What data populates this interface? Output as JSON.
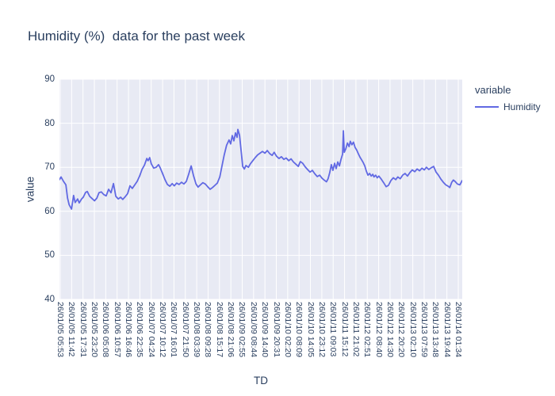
{
  "chart_data": {
    "type": "line",
    "title": "Humidity (%)  data for the past week",
    "xlabel": "TD",
    "ylabel": "value",
    "legend_title": "variable",
    "legend_position": "right",
    "grid": true,
    "ylim": [
      40,
      90
    ],
    "y_ticks": [
      40,
      50,
      60,
      70,
      80,
      90
    ],
    "x_ticks": [
      "26/01/05 05:53",
      "26/01/05 11:42",
      "26/01/05 17:31",
      "26/01/05 23:20",
      "26/01/06 05:08",
      "26/01/06 10:57",
      "26/01/06 16:46",
      "26/01/06 22:35",
      "26/01/07 04:24",
      "26/01/07 10:12",
      "26/01/07 16:01",
      "26/01/07 21:50",
      "26/01/08 03:39",
      "26/01/08 09:28",
      "26/01/08 15:17",
      "26/01/08 21:06",
      "26/01/09 02:55",
      "26/01/09 08:44",
      "26/01/09 14:40",
      "26/01/09 20:31",
      "26/01/10 02:20",
      "26/01/10 08:09",
      "26/01/10 14:05",
      "26/01/10 23:12",
      "26/01/11 09:03",
      "26/01/11 15:12",
      "26/01/11 21:02",
      "26/01/12 02:51",
      "26/01/12 08:40",
      "26/01/12 14:30",
      "26/01/12 20:20",
      "26/01/13 02:10",
      "26/01/13 07:59",
      "26/01/13 13:48",
      "26/01/13 19:44",
      "26/01/14 01:34"
    ],
    "colors": {
      "line": "#6169e3",
      "plot_bg": "#e8eaf4",
      "grid": "#ffffff",
      "text": "#2a3f5f"
    },
    "series": [
      {
        "name": "Humidity",
        "points": [
          [
            0.0,
            67.2
          ],
          [
            0.004,
            67.8
          ],
          [
            0.01,
            66.8
          ],
          [
            0.016,
            66.0
          ],
          [
            0.02,
            63.0
          ],
          [
            0.024,
            61.5
          ],
          [
            0.03,
            60.5
          ],
          [
            0.035,
            63.6
          ],
          [
            0.039,
            62.0
          ],
          [
            0.045,
            62.8
          ],
          [
            0.049,
            61.9
          ],
          [
            0.055,
            62.8
          ],
          [
            0.059,
            63.2
          ],
          [
            0.065,
            64.3
          ],
          [
            0.069,
            64.5
          ],
          [
            0.075,
            63.4
          ],
          [
            0.081,
            62.9
          ],
          [
            0.087,
            62.4
          ],
          [
            0.093,
            63.0
          ],
          [
            0.098,
            64.2
          ],
          [
            0.104,
            64.4
          ],
          [
            0.11,
            63.8
          ],
          [
            0.116,
            63.5
          ],
          [
            0.122,
            65.0
          ],
          [
            0.128,
            64.2
          ],
          [
            0.134,
            66.3
          ],
          [
            0.14,
            63.4
          ],
          [
            0.146,
            62.8
          ],
          [
            0.152,
            63.2
          ],
          [
            0.157,
            62.7
          ],
          [
            0.163,
            63.3
          ],
          [
            0.169,
            64.0
          ],
          [
            0.175,
            65.8
          ],
          [
            0.181,
            65.2
          ],
          [
            0.187,
            66.0
          ],
          [
            0.193,
            66.8
          ],
          [
            0.199,
            68.0
          ],
          [
            0.205,
            69.5
          ],
          [
            0.211,
            70.5
          ],
          [
            0.217,
            72.0
          ],
          [
            0.22,
            71.5
          ],
          [
            0.224,
            72.2
          ],
          [
            0.228,
            70.8
          ],
          [
            0.234,
            69.8
          ],
          [
            0.24,
            70.0
          ],
          [
            0.246,
            70.6
          ],
          [
            0.25,
            69.9
          ],
          [
            0.256,
            68.6
          ],
          [
            0.262,
            67.2
          ],
          [
            0.268,
            66.1
          ],
          [
            0.274,
            65.7
          ],
          [
            0.28,
            66.3
          ],
          [
            0.285,
            65.8
          ],
          [
            0.291,
            66.4
          ],
          [
            0.297,
            66.1
          ],
          [
            0.303,
            66.6
          ],
          [
            0.309,
            66.2
          ],
          [
            0.315,
            66.8
          ],
          [
            0.321,
            68.5
          ],
          [
            0.327,
            70.3
          ],
          [
            0.333,
            68.0
          ],
          [
            0.339,
            66.2
          ],
          [
            0.344,
            65.5
          ],
          [
            0.35,
            66.0
          ],
          [
            0.356,
            66.5
          ],
          [
            0.362,
            66.2
          ],
          [
            0.368,
            65.6
          ],
          [
            0.374,
            65.0
          ],
          [
            0.38,
            65.4
          ],
          [
            0.386,
            65.9
          ],
          [
            0.392,
            66.4
          ],
          [
            0.398,
            67.8
          ],
          [
            0.404,
            70.5
          ],
          [
            0.409,
            72.8
          ],
          [
            0.415,
            75.0
          ],
          [
            0.421,
            76.2
          ],
          [
            0.425,
            75.3
          ],
          [
            0.429,
            77.2
          ],
          [
            0.433,
            76.0
          ],
          [
            0.437,
            77.8
          ],
          [
            0.441,
            76.8
          ],
          [
            0.443,
            78.6
          ],
          [
            0.447,
            77.3
          ],
          [
            0.451,
            73.8
          ],
          [
            0.455,
            70.2
          ],
          [
            0.459,
            69.6
          ],
          [
            0.463,
            70.4
          ],
          [
            0.469,
            70.0
          ],
          [
            0.474,
            70.8
          ],
          [
            0.48,
            71.5
          ],
          [
            0.486,
            72.2
          ],
          [
            0.492,
            72.8
          ],
          [
            0.498,
            73.2
          ],
          [
            0.504,
            73.6
          ],
          [
            0.51,
            73.2
          ],
          [
            0.516,
            73.8
          ],
          [
            0.522,
            73.1
          ],
          [
            0.528,
            72.7
          ],
          [
            0.533,
            73.4
          ],
          [
            0.539,
            72.5
          ],
          [
            0.545,
            72.0
          ],
          [
            0.551,
            72.4
          ],
          [
            0.557,
            71.8
          ],
          [
            0.563,
            72.1
          ],
          [
            0.569,
            71.5
          ],
          [
            0.575,
            71.9
          ],
          [
            0.581,
            71.2
          ],
          [
            0.587,
            70.7
          ],
          [
            0.593,
            70.2
          ],
          [
            0.598,
            71.3
          ],
          [
            0.604,
            70.9
          ],
          [
            0.61,
            70.1
          ],
          [
            0.616,
            69.5
          ],
          [
            0.622,
            68.9
          ],
          [
            0.628,
            69.3
          ],
          [
            0.634,
            68.5
          ],
          [
            0.64,
            67.9
          ],
          [
            0.646,
            68.2
          ],
          [
            0.652,
            67.5
          ],
          [
            0.657,
            67.1
          ],
          [
            0.663,
            66.7
          ],
          [
            0.667,
            67.4
          ],
          [
            0.671,
            68.8
          ],
          [
            0.675,
            70.6
          ],
          [
            0.679,
            69.3
          ],
          [
            0.683,
            70.9
          ],
          [
            0.687,
            69.7
          ],
          [
            0.691,
            71.2
          ],
          [
            0.695,
            70.3
          ],
          [
            0.699,
            71.8
          ],
          [
            0.703,
            73.0
          ],
          [
            0.705,
            78.3
          ],
          [
            0.707,
            73.4
          ],
          [
            0.711,
            74.2
          ],
          [
            0.715,
            75.5
          ],
          [
            0.719,
            74.7
          ],
          [
            0.722,
            75.9
          ],
          [
            0.726,
            75.1
          ],
          [
            0.73,
            75.7
          ],
          [
            0.734,
            74.5
          ],
          [
            0.738,
            73.9
          ],
          [
            0.742,
            73.1
          ],
          [
            0.746,
            72.3
          ],
          [
            0.75,
            71.7
          ],
          [
            0.754,
            71.1
          ],
          [
            0.758,
            70.3
          ],
          [
            0.762,
            69.1
          ],
          [
            0.766,
            68.2
          ],
          [
            0.77,
            68.6
          ],
          [
            0.774,
            68.0
          ],
          [
            0.778,
            68.4
          ],
          [
            0.781,
            67.8
          ],
          [
            0.785,
            68.2
          ],
          [
            0.789,
            67.6
          ],
          [
            0.793,
            68.0
          ],
          [
            0.799,
            67.3
          ],
          [
            0.805,
            66.5
          ],
          [
            0.811,
            65.6
          ],
          [
            0.817,
            65.9
          ],
          [
            0.823,
            67.0
          ],
          [
            0.829,
            67.6
          ],
          [
            0.835,
            67.2
          ],
          [
            0.84,
            67.8
          ],
          [
            0.846,
            67.4
          ],
          [
            0.852,
            68.2
          ],
          [
            0.858,
            68.6
          ],
          [
            0.864,
            68.0
          ],
          [
            0.87,
            68.8
          ],
          [
            0.876,
            69.4
          ],
          [
            0.882,
            69.0
          ],
          [
            0.888,
            69.6
          ],
          [
            0.894,
            69.2
          ],
          [
            0.9,
            69.8
          ],
          [
            0.906,
            69.4
          ],
          [
            0.911,
            70.0
          ],
          [
            0.917,
            69.5
          ],
          [
            0.923,
            69.9
          ],
          [
            0.929,
            70.2
          ],
          [
            0.935,
            68.9
          ],
          [
            0.941,
            68.2
          ],
          [
            0.947,
            67.3
          ],
          [
            0.953,
            66.6
          ],
          [
            0.959,
            66.0
          ],
          [
            0.965,
            65.7
          ],
          [
            0.969,
            65.4
          ],
          [
            0.974,
            66.6
          ],
          [
            0.978,
            67.1
          ],
          [
            0.982,
            66.8
          ],
          [
            0.988,
            66.2
          ],
          [
            0.994,
            66.0
          ],
          [
            1.0,
            67.0
          ]
        ]
      }
    ]
  }
}
